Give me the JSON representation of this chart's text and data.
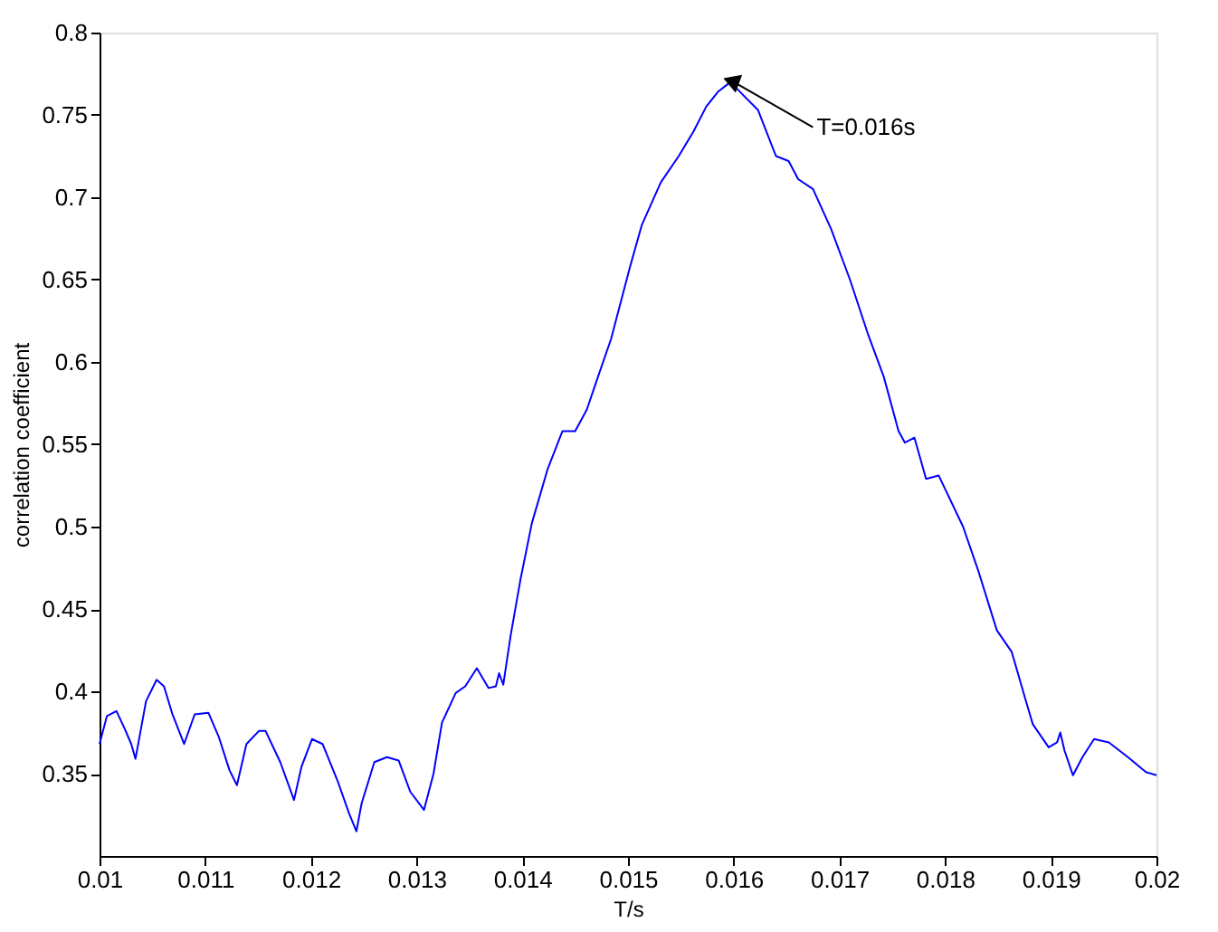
{
  "chart_data": {
    "type": "line",
    "xlabel": "T/s",
    "ylabel": "correlation coefficient",
    "xlim": [
      0.01,
      0.02
    ],
    "xticks": [
      0.01,
      0.011,
      0.012,
      0.013,
      0.014,
      0.015,
      0.016,
      0.017,
      0.018,
      0.019,
      0.02
    ],
    "ylim": [
      0.3,
      0.8
    ],
    "yticks": [
      0.35,
      0.4,
      0.45,
      0.5,
      0.55,
      0.6,
      0.65,
      0.7,
      0.75,
      0.8
    ],
    "grid": false,
    "marker": "none",
    "line_style": "solid",
    "annotations": [
      {
        "text": "T=0.016s",
        "x": 0.016,
        "y": 0.77
      }
    ],
    "x": [
      0.01,
      0.01007,
      0.01016,
      0.01024,
      0.0103,
      0.01034,
      0.01044,
      0.01054,
      0.01061,
      0.01069,
      0.0108,
      0.0109,
      0.01103,
      0.01113,
      0.01123,
      0.0113,
      0.01139,
      0.01151,
      0.01157,
      0.01171,
      0.01184,
      0.01191,
      0.01201,
      0.01211,
      0.01225,
      0.01236,
      0.01243,
      0.01248,
      0.0126,
      0.01272,
      0.01283,
      0.01294,
      0.01307,
      0.01316,
      0.01324,
      0.01337,
      0.01346,
      0.01357,
      0.01368,
      0.01375,
      0.01378,
      0.01382,
      0.01389,
      0.01398,
      0.01409,
      0.01424,
      0.01438,
      0.0145,
      0.01461,
      0.0147,
      0.01484,
      0.01502,
      0.01513,
      0.01531,
      0.01548,
      0.01562,
      0.01574,
      0.01585,
      0.01597,
      0.01609,
      0.01623,
      0.0164,
      0.01652,
      0.01661,
      0.01675,
      0.01692,
      0.0171,
      0.01727,
      0.01742,
      0.01756,
      0.01762,
      0.01771,
      0.01782,
      0.01794,
      0.01817,
      0.01831,
      0.01849,
      0.01863,
      0.01877,
      0.01883,
      0.01898,
      0.01906,
      0.01909,
      0.01913,
      0.01921,
      0.0193,
      0.01941,
      0.01955,
      0.01973,
      0.0199,
      0.02
    ],
    "series": [
      {
        "color": "#0000ff",
        "values": [
          0.368,
          0.385,
          0.388,
          0.377,
          0.368,
          0.359,
          0.394,
          0.407,
          0.403,
          0.386,
          0.368,
          0.386,
          0.387,
          0.372,
          0.352,
          0.343,
          0.368,
          0.376,
          0.376,
          0.357,
          0.334,
          0.354,
          0.371,
          0.368,
          0.346,
          0.326,
          0.315,
          0.332,
          0.357,
          0.36,
          0.358,
          0.339,
          0.328,
          0.35,
          0.381,
          0.399,
          0.403,
          0.414,
          0.402,
          0.403,
          0.411,
          0.404,
          0.434,
          0.467,
          0.502,
          0.535,
          0.558,
          0.558,
          0.571,
          0.588,
          0.614,
          0.658,
          0.683,
          0.709,
          0.725,
          0.74,
          0.755,
          0.764,
          0.77,
          0.762,
          0.753,
          0.725,
          0.722,
          0.711,
          0.705,
          0.681,
          0.65,
          0.617,
          0.591,
          0.558,
          0.551,
          0.554,
          0.529,
          0.531,
          0.5,
          0.474,
          0.437,
          0.424,
          0.393,
          0.38,
          0.366,
          0.369,
          0.375,
          0.364,
          0.349,
          0.36,
          0.371,
          0.369,
          0.36,
          0.351,
          0.349
        ]
      }
    ]
  }
}
